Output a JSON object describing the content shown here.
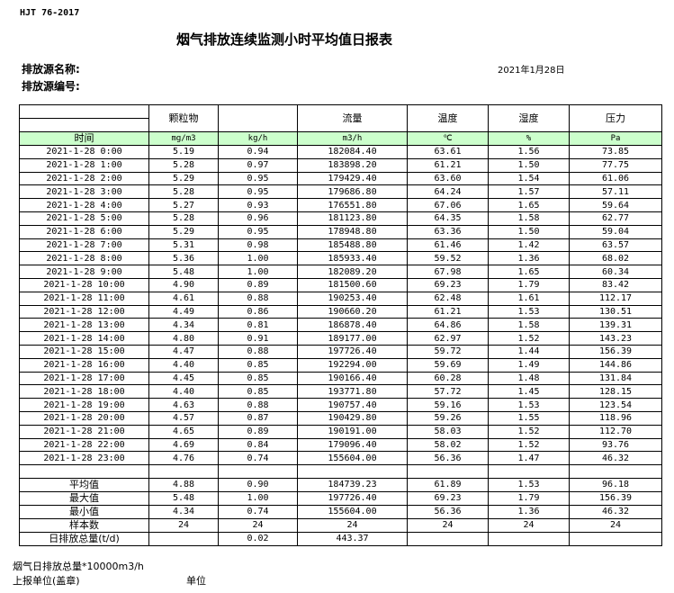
{
  "header": {
    "standard": "HJT  76-2017",
    "title": "烟气排放连续监测小时平均值日报表",
    "source_name_label": "排放源名称:",
    "source_no_label": "排放源编号:",
    "date": "2021年1月28日"
  },
  "columns": {
    "names": [
      "",
      "颗粒物",
      "",
      "流量",
      "温度",
      "湿度",
      "压力"
    ],
    "units": [
      "时间",
      "mg/m3",
      "kg/h",
      "m3/h",
      "℃",
      "%",
      "Pa"
    ]
  },
  "rows": [
    [
      "2021-1-28 0:00",
      "5.19",
      "0.94",
      "182084.40",
      "63.61",
      "1.56",
      "73.85"
    ],
    [
      "2021-1-28 1:00",
      "5.28",
      "0.97",
      "183898.20",
      "61.21",
      "1.50",
      "77.75"
    ],
    [
      "2021-1-28 2:00",
      "5.29",
      "0.95",
      "179429.40",
      "63.60",
      "1.54",
      "61.06"
    ],
    [
      "2021-1-28 3:00",
      "5.28",
      "0.95",
      "179686.80",
      "64.24",
      "1.57",
      "57.11"
    ],
    [
      "2021-1-28 4:00",
      "5.27",
      "0.93",
      "176551.80",
      "67.06",
      "1.65",
      "59.64"
    ],
    [
      "2021-1-28 5:00",
      "5.28",
      "0.96",
      "181123.80",
      "64.35",
      "1.58",
      "62.77"
    ],
    [
      "2021-1-28 6:00",
      "5.29",
      "0.95",
      "178948.80",
      "63.36",
      "1.50",
      "59.04"
    ],
    [
      "2021-1-28 7:00",
      "5.31",
      "0.98",
      "185488.80",
      "61.46",
      "1.42",
      "63.57"
    ],
    [
      "2021-1-28 8:00",
      "5.36",
      "1.00",
      "185933.40",
      "59.52",
      "1.36",
      "68.02"
    ],
    [
      "2021-1-28 9:00",
      "5.48",
      "1.00",
      "182089.20",
      "67.98",
      "1.65",
      "60.34"
    ],
    [
      "2021-1-28 10:00",
      "4.90",
      "0.89",
      "181500.60",
      "69.23",
      "1.79",
      "83.42"
    ],
    [
      "2021-1-28 11:00",
      "4.61",
      "0.88",
      "190253.40",
      "62.48",
      "1.61",
      "112.17"
    ],
    [
      "2021-1-28 12:00",
      "4.49",
      "0.86",
      "190660.20",
      "61.21",
      "1.53",
      "130.51"
    ],
    [
      "2021-1-28 13:00",
      "4.34",
      "0.81",
      "186878.40",
      "64.86",
      "1.58",
      "139.31"
    ],
    [
      "2021-1-28 14:00",
      "4.80",
      "0.91",
      "189177.00",
      "62.97",
      "1.52",
      "143.23"
    ],
    [
      "2021-1-28 15:00",
      "4.47",
      "0.88",
      "197726.40",
      "59.72",
      "1.44",
      "156.39"
    ],
    [
      "2021-1-28 16:00",
      "4.40",
      "0.85",
      "192294.00",
      "59.69",
      "1.49",
      "144.86"
    ],
    [
      "2021-1-28 17:00",
      "4.45",
      "0.85",
      "190166.40",
      "60.28",
      "1.48",
      "131.84"
    ],
    [
      "2021-1-28 18:00",
      "4.40",
      "0.85",
      "193771.80",
      "57.72",
      "1.45",
      "128.15"
    ],
    [
      "2021-1-28 19:00",
      "4.63",
      "0.88",
      "190757.40",
      "59.16",
      "1.53",
      "123.54"
    ],
    [
      "2021-1-28 20:00",
      "4.57",
      "0.87",
      "190429.80",
      "59.26",
      "1.55",
      "118.96"
    ],
    [
      "2021-1-28 21:00",
      "4.65",
      "0.89",
      "190191.00",
      "58.03",
      "1.52",
      "112.70"
    ],
    [
      "2021-1-28 22:00",
      "4.69",
      "0.84",
      "179096.40",
      "58.02",
      "1.52",
      "93.76"
    ],
    [
      "2021-1-28 23:00",
      "4.76",
      "0.74",
      "155604.00",
      "56.36",
      "1.47",
      "46.32"
    ]
  ],
  "summary": [
    [
      "平均值",
      "4.88",
      "0.90",
      "184739.23",
      "61.89",
      "1.53",
      "96.18"
    ],
    [
      "最大值",
      "5.48",
      "1.00",
      "197726.40",
      "69.23",
      "1.79",
      "156.39"
    ],
    [
      "最小值",
      "4.34",
      "0.74",
      "155604.00",
      "56.36",
      "1.36",
      "46.32"
    ],
    [
      "样本数",
      "24",
      "24",
      "24",
      "24",
      "24",
      "24"
    ],
    [
      "日排放总量(t/d)",
      "",
      "0.02",
      "443.37",
      "",
      "",
      ""
    ]
  ],
  "footer": {
    "total_label": "烟气日排放总量*10000m3/h",
    "reporter_label": "上报单位(盖章)",
    "unit_label": "单位"
  }
}
